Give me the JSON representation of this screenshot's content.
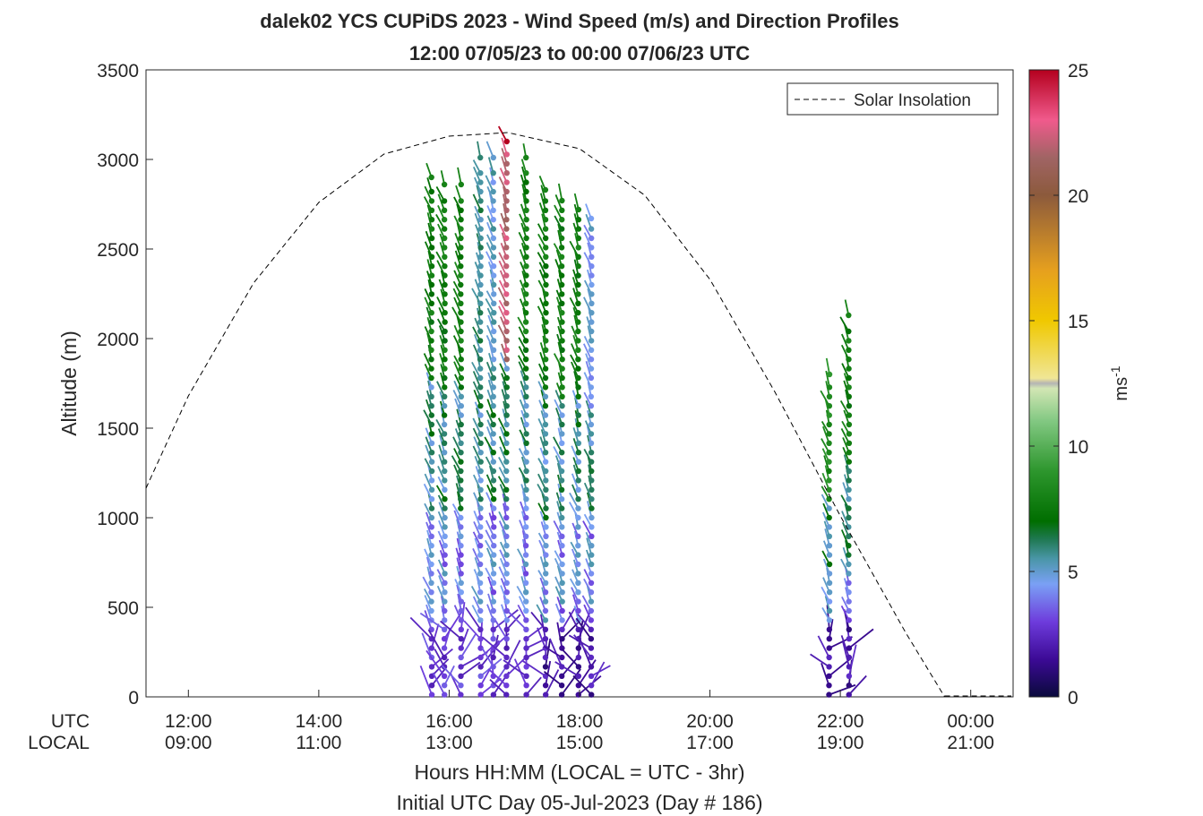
{
  "chart_data": {
    "type": "scatter",
    "title": "dalek02 YCS CUPiDS 2023 - Wind Speed (m/s) and Direction Profiles",
    "subtitle": "12:00 07/05/23 to 00:00 07/06/23  UTC",
    "ylabel": "Altitude (m)",
    "xlabel": "Hours HH:MM  (LOCAL = UTC - 3hr)",
    "xlabel2": "Initial UTC Day 05-Jul-2023 (Day # 186)",
    "ylim": [
      0,
      3500
    ],
    "xlim_hours_utc": [
      11.35,
      24.65
    ],
    "yticks": [
      0,
      500,
      1000,
      1500,
      2000,
      2500,
      3000,
      3500
    ],
    "xtick_hours_utc": [
      12,
      14,
      16,
      18,
      20,
      22,
      24
    ],
    "xtick_labels_utc": [
      "12:00",
      "14:00",
      "16:00",
      "18:00",
      "20:00",
      "22:00",
      "00:00"
    ],
    "xtick_labels_local": [
      "09:00",
      "11:00",
      "13:00",
      "15:00",
      "17:00",
      "19:00",
      "21:00"
    ],
    "row_label_utc": "UTC",
    "row_label_local": "LOCAL",
    "legend": {
      "label": "Solar Insolation",
      "position": "top-right"
    },
    "grid": false,
    "colorbar": {
      "label": "ms",
      "label_superscript": "-1",
      "range": [
        0,
        25
      ],
      "ticks": [
        0,
        5,
        10,
        15,
        20,
        25
      ],
      "colors": [
        [
          0,
          "#0a0a3c"
        ],
        [
          1.5,
          "#3c0a96"
        ],
        [
          3,
          "#6e3cdc"
        ],
        [
          4.5,
          "#7aa0f5"
        ],
        [
          5.5,
          "#4a96a8"
        ],
        [
          6.3,
          "#1e7850"
        ],
        [
          7,
          "#006e00"
        ],
        [
          9,
          "#2d962d"
        ],
        [
          11,
          "#82c882"
        ],
        [
          12.3,
          "#d2e6b4"
        ],
        [
          12.5,
          "#b4b4b4"
        ],
        [
          12.7,
          "#f0e696"
        ],
        [
          15,
          "#f0c800"
        ],
        [
          17,
          "#e6a01e"
        ],
        [
          20,
          "#8c5a3c"
        ],
        [
          21.5,
          "#a06464"
        ],
        [
          23,
          "#f05a8c"
        ],
        [
          25,
          "#b4001e"
        ]
      ]
    },
    "solar_insolation_curve": {
      "style": "dashed",
      "peak_hour_utc": 16.9,
      "peak_altitude_m": 3150,
      "points": [
        [
          11.35,
          1165
        ],
        [
          12,
          1680
        ],
        [
          13,
          2310
        ],
        [
          14,
          2760
        ],
        [
          15,
          3030
        ],
        [
          16,
          3130
        ],
        [
          16.9,
          3150
        ],
        [
          18,
          3060
        ],
        [
          19,
          2800
        ],
        [
          20,
          2330
        ],
        [
          21,
          1700
        ],
        [
          22,
          1010
        ],
        [
          23,
          360
        ],
        [
          23.6,
          0
        ]
      ]
    },
    "profiles": [
      {
        "time_utc": 15.7,
        "top_altitude_m": 2900,
        "high_level_wind_ms": 8,
        "low_level_wind_ms": 2
      },
      {
        "time_utc": 15.9,
        "top_altitude_m": 2860,
        "high_level_wind_ms": 8,
        "low_level_wind_ms": 2
      },
      {
        "time_utc": 16.15,
        "top_altitude_m": 2860,
        "high_level_wind_ms": 8,
        "low_level_wind_ms": 2
      },
      {
        "time_utc": 16.45,
        "top_altitude_m": 3010,
        "high_level_wind_ms": 6,
        "low_level_wind_ms": 2
      },
      {
        "time_utc": 16.65,
        "top_altitude_m": 3010,
        "high_level_wind_ms": 5,
        "low_level_wind_ms": 2
      },
      {
        "time_utc": 16.85,
        "top_altitude_m": 3100,
        "high_level_wind_ms": 25,
        "low_level_wind_ms": 2
      },
      {
        "time_utc": 17.15,
        "top_altitude_m": 3010,
        "high_level_wind_ms": 8,
        "low_level_wind_ms": 2
      },
      {
        "time_utc": 17.45,
        "top_altitude_m": 2830,
        "high_level_wind_ms": 8,
        "low_level_wind_ms": 1
      },
      {
        "time_utc": 17.7,
        "top_altitude_m": 2770,
        "high_level_wind_ms": 8,
        "low_level_wind_ms": 1
      },
      {
        "time_utc": 17.95,
        "top_altitude_m": 2720,
        "high_level_wind_ms": 8,
        "low_level_wind_ms": 1
      },
      {
        "time_utc": 18.15,
        "top_altitude_m": 2670,
        "high_level_wind_ms": 4.5,
        "low_level_wind_ms": 1
      },
      {
        "time_utc": 21.8,
        "top_altitude_m": 1800,
        "high_level_wind_ms": 9,
        "low_level_wind_ms": 1
      },
      {
        "time_utc": 22.1,
        "top_altitude_m": 2130,
        "high_level_wind_ms": 8,
        "low_level_wind_ms": 1
      }
    ]
  }
}
